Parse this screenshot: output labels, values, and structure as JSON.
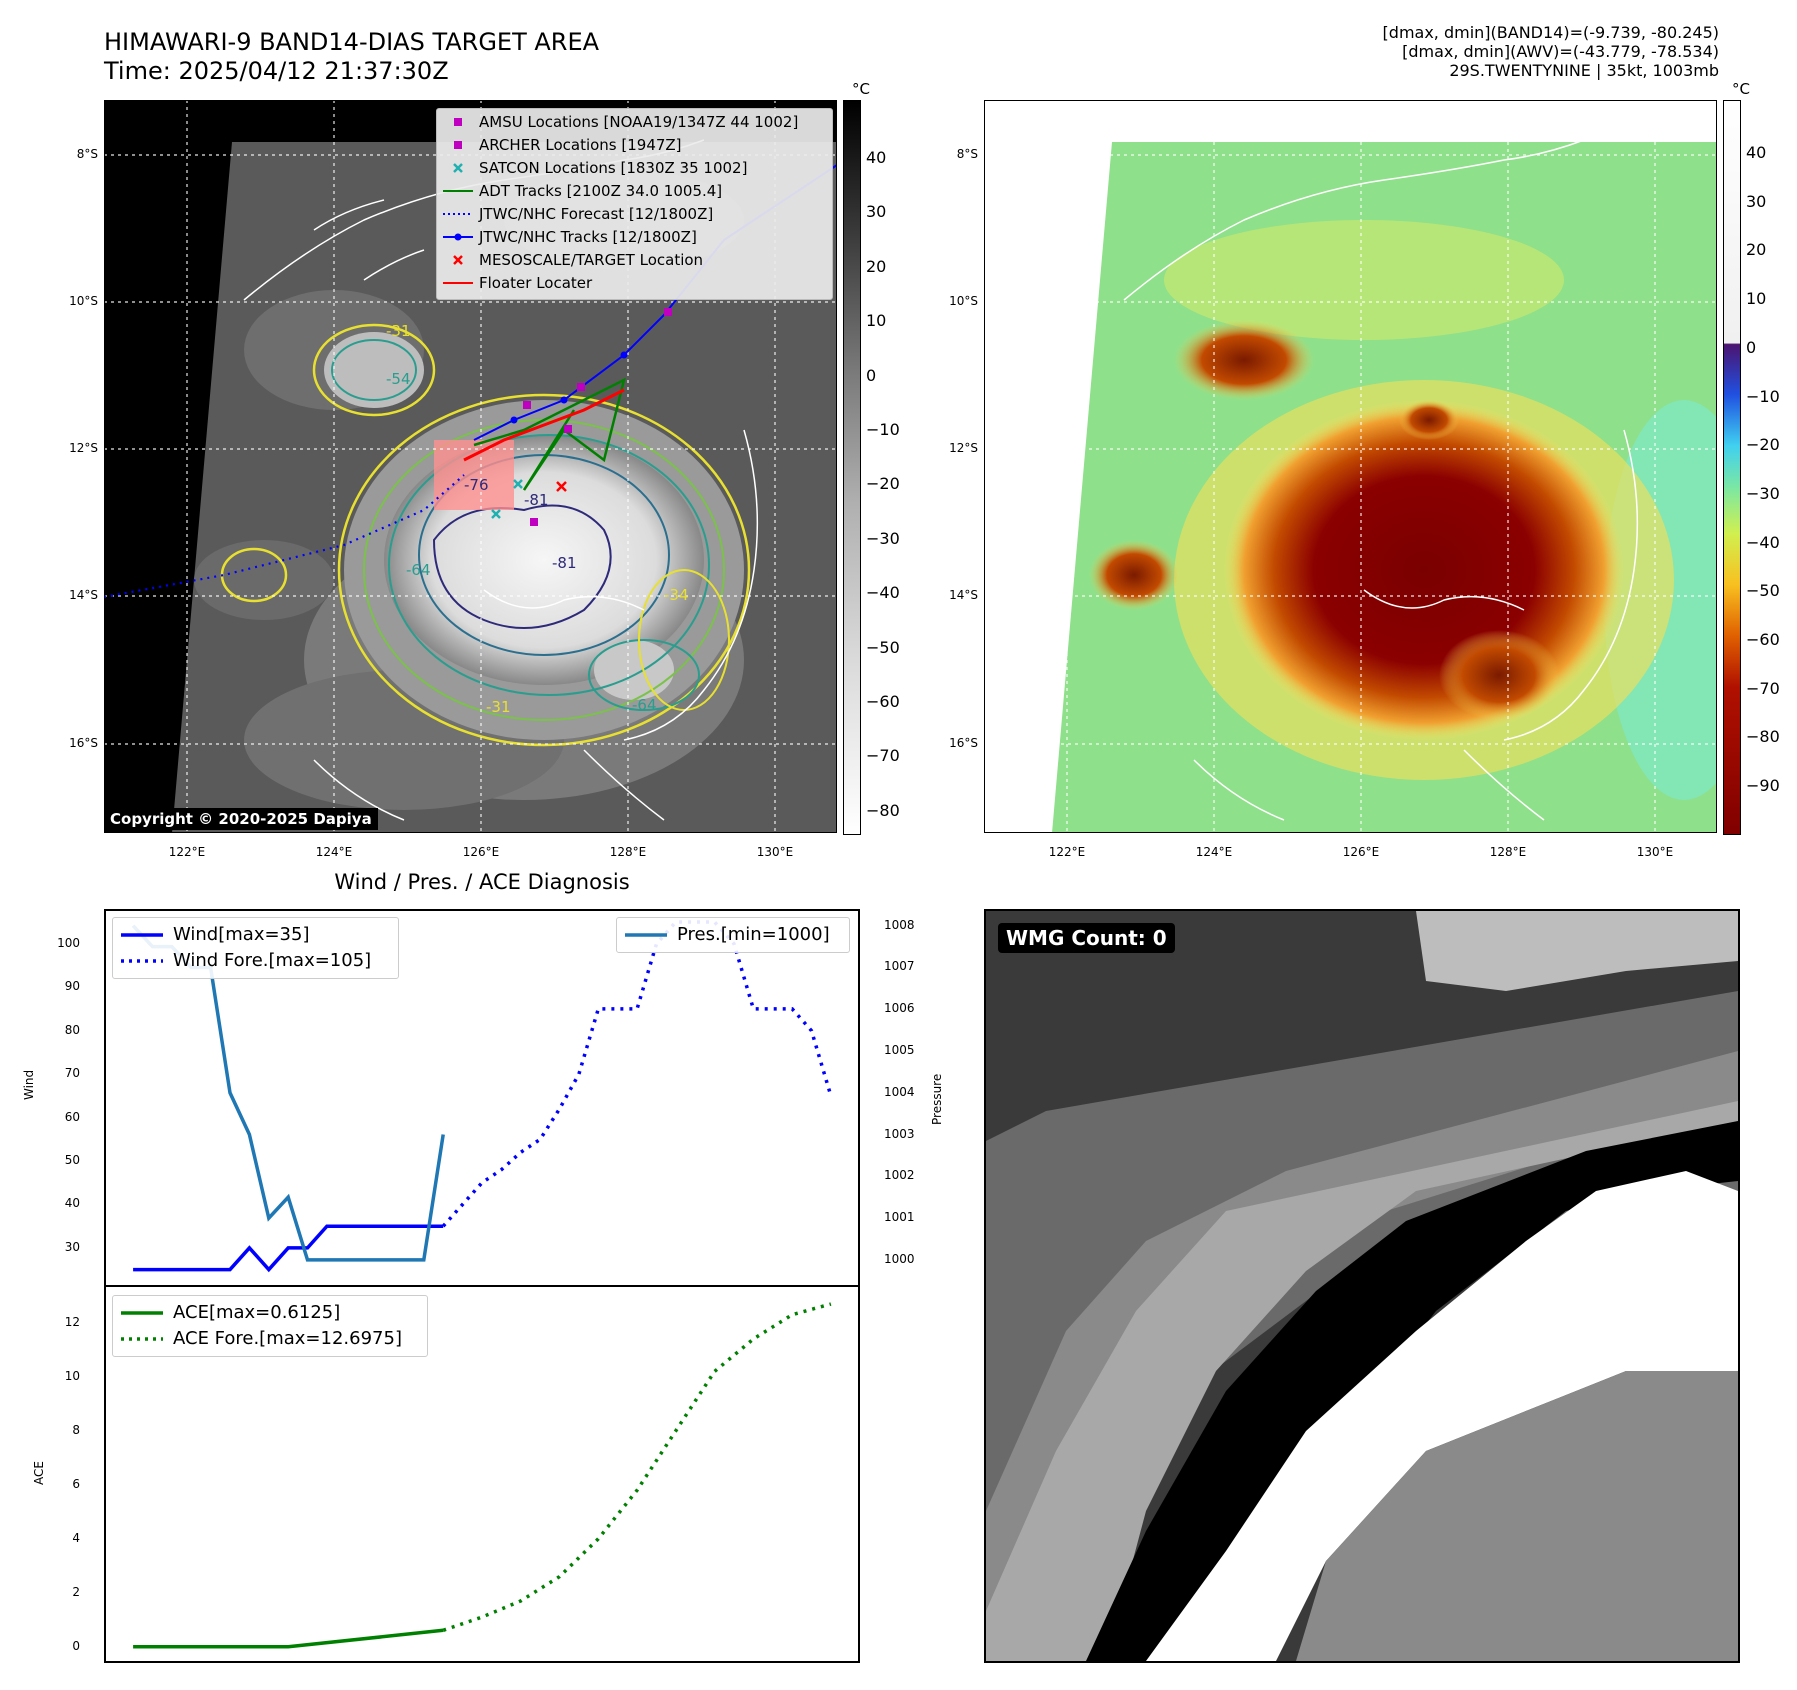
{
  "header": {
    "title_line1": "HIMAWARI-9 BAND14-DIAS TARGET AREA",
    "title_line2": "Time: 2025/04/12 21:37:30Z",
    "info_line1": "[dmax, dmin](BAND14)=(-9.739, -80.245)",
    "info_line2": "[dmax, dmin](AWV)=(-43.779, -78.534)",
    "info_line3": "29S.TWENTYNINE | 35kt, 1003mb"
  },
  "map_panel": {
    "lat_labels": [
      "8°S",
      "10°S",
      "12°S",
      "14°S",
      "16°S"
    ],
    "lon_labels": [
      "122°E",
      "124°E",
      "126°E",
      "128°E",
      "130°E"
    ],
    "copyright": "Copyright © 2020-2025 Dapiya",
    "contour_labels": [
      "-31",
      "-54",
      "-76",
      "-81",
      "-81",
      "-64",
      "-64",
      "-31",
      "-34"
    ],
    "legend": [
      {
        "label": "AMSU Locations [NOAA19/1347Z 44 1002]",
        "symbol": "square",
        "color": "#c000c0"
      },
      {
        "label": "ARCHER Locations [1947Z]",
        "symbol": "square",
        "color": "#c000c0"
      },
      {
        "label": "SATCON Locations [1830Z 35 1002]",
        "symbol": "x",
        "color": "#20b0b0"
      },
      {
        "label": "ADT Tracks [2100Z 34.0 1005.4]",
        "symbol": "line",
        "color": "#008000"
      },
      {
        "label": "JTWC/NHC Forecast [12/1800Z]",
        "symbol": "dotted",
        "color": "#0000ff"
      },
      {
        "label": "JTWC/NHC Tracks [12/1800Z]",
        "symbol": "line-dot",
        "color": "#0000ff"
      },
      {
        "label": "MESOSCALE/TARGET Location",
        "symbol": "x",
        "color": "#ff0000"
      },
      {
        "label": "Floater Locater",
        "symbol": "line",
        "color": "#ff0000"
      }
    ],
    "colorbar_unit": "°C",
    "colorbar_ticks": [
      "40",
      "30",
      "20",
      "10",
      "0",
      "−10",
      "−20",
      "−30",
      "−40",
      "−50",
      "−60",
      "−70",
      "−80"
    ]
  },
  "awv_panel": {
    "lat_labels": [
      "8°S",
      "10°S",
      "12°S",
      "14°S",
      "16°S"
    ],
    "lon_labels": [
      "122°E",
      "124°E",
      "126°E",
      "128°E",
      "130°E"
    ],
    "colorbar_unit": "°C",
    "colorbar_ticks": [
      "40",
      "30",
      "20",
      "10",
      "0",
      "−10",
      "−20",
      "−30",
      "−40",
      "−50",
      "−60",
      "−70",
      "−80",
      "−90"
    ]
  },
  "wmg_panel": {
    "label": "WMG Count: 0"
  },
  "chart_data": [
    {
      "type": "line",
      "title": "Wind / Pres. / ACE Diagnosis",
      "ylabel": "Wind",
      "y2label": "Pressure",
      "ylim": [
        21,
        108
      ],
      "y2lim": [
        999.35,
        1008.4
      ],
      "yticks": [
        "30",
        "40",
        "50",
        "60",
        "70",
        "80",
        "90",
        "100"
      ],
      "y2ticks": [
        "1000",
        "1001",
        "1002",
        "1003",
        "1004",
        "1005",
        "1006",
        "1007",
        "1008"
      ],
      "x_index": [
        0,
        1,
        2,
        3,
        4,
        5,
        6,
        7,
        8,
        9,
        10,
        11,
        12,
        13,
        14,
        15,
        16,
        17,
        18,
        19,
        20,
        21,
        22,
        23,
        24,
        25,
        26,
        27,
        28,
        29,
        30,
        31,
        32,
        33,
        34,
        35,
        36
      ],
      "series": [
        {
          "name": "Wind[max=35]",
          "axis": "left",
          "style": "solid",
          "color": "#0000ff",
          "x": [
            0,
            1,
            2,
            3,
            4,
            5,
            6,
            7,
            8,
            9,
            10,
            11,
            12,
            13,
            14,
            15,
            16
          ],
          "values": [
            25,
            25,
            25,
            25,
            25,
            25,
            30,
            25,
            30,
            30,
            35,
            35,
            35,
            35,
            35,
            35,
            35
          ]
        },
        {
          "name": "Wind Fore.[max=105]",
          "axis": "left",
          "style": "dotted",
          "color": "#0000ff",
          "x": [
            16,
            17,
            18,
            19,
            20,
            21,
            22,
            23,
            24,
            25,
            26,
            27,
            28,
            29,
            30,
            31,
            32,
            33,
            34,
            35,
            36
          ],
          "values": [
            35,
            40,
            45,
            48,
            52,
            55,
            62,
            70,
            85,
            85,
            85,
            100,
            105,
            105,
            105,
            100,
            85,
            85,
            85,
            80,
            65
          ]
        },
        {
          "name": "Pres.[min=1000]",
          "axis": "right",
          "style": "solid",
          "color": "#1f77b4",
          "x": [
            0,
            1,
            2,
            3,
            4,
            5,
            6,
            7,
            8,
            9,
            10,
            11,
            12,
            13,
            14,
            15,
            16
          ],
          "values": [
            1008,
            1007.5,
            1007.5,
            1007,
            1007,
            1004,
            1003,
            1001,
            1001.5,
            1000,
            1000,
            1000,
            1000,
            1000,
            1000,
            1000,
            1003
          ]
        }
      ],
      "legend_left": [
        "Wind[max=35]",
        "Wind Fore.[max=105]"
      ],
      "legend_right": [
        "Pres.[min=1000]"
      ]
    },
    {
      "type": "line",
      "ylabel": "ACE",
      "ylim": [
        -0.6,
        13.4
      ],
      "yticks": [
        "0",
        "2",
        "4",
        "6",
        "8",
        "10",
        "12"
      ],
      "series": [
        {
          "name": "ACE[max=0.6125]",
          "style": "solid",
          "color": "#008000",
          "x": [
            0,
            8,
            16
          ],
          "values": [
            0,
            0,
            0.6125
          ]
        },
        {
          "name": "ACE Fore.[max=12.6975]",
          "style": "dotted",
          "color": "#008000",
          "x": [
            16,
            18,
            20,
            22,
            24,
            26,
            28,
            30,
            32,
            34,
            36
          ],
          "values": [
            0.6125,
            1.1,
            1.7,
            2.6,
            4.0,
            5.8,
            8.0,
            10.2,
            11.4,
            12.3,
            12.6975
          ]
        }
      ]
    }
  ]
}
